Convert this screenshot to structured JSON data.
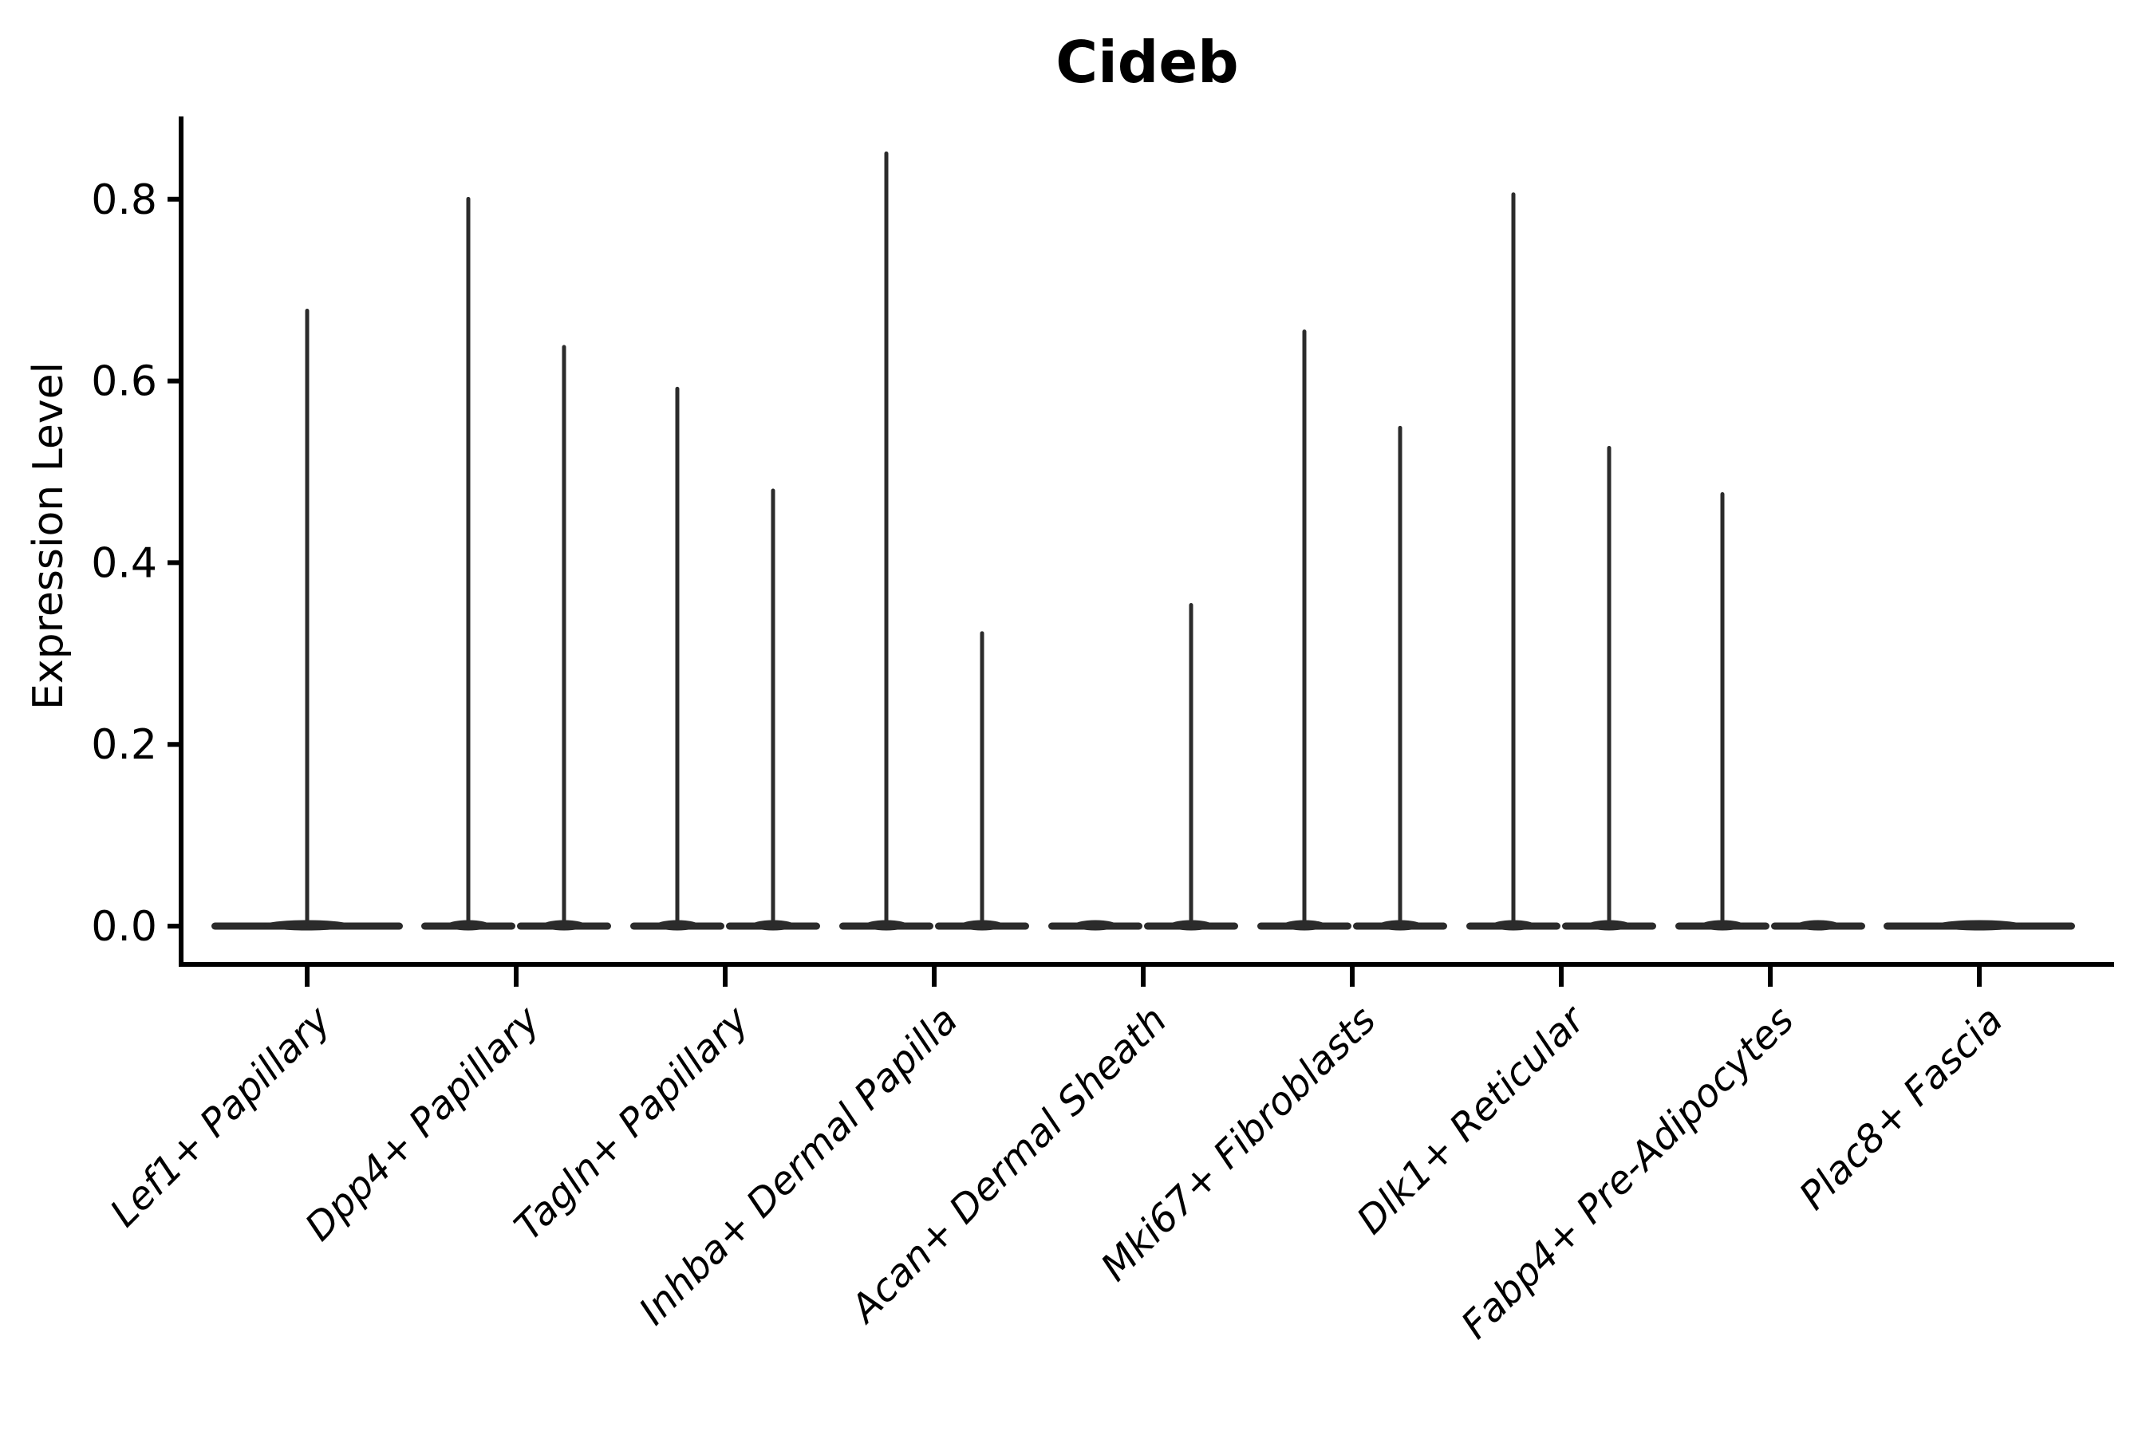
{
  "chart_data": {
    "type": "violin",
    "title": "Cideb",
    "xlabel": "",
    "ylabel": "Expression Level",
    "ylim": [
      -0.04,
      0.89
    ],
    "yticks": [
      0.0,
      0.2,
      0.4,
      0.6,
      0.8
    ],
    "ytick_labels": [
      "0.0",
      "0.2",
      "0.4",
      "0.6",
      "0.8"
    ],
    "grid": false,
    "legend": "none",
    "baseline_value": 0.0,
    "note": "Each category shows flat violin mass at 0 with a thin spike to the max expression; categories with two sub-violins are dodged pairs",
    "categories": [
      "Lef1+ Papillary",
      "Dpp4+ Papillary",
      "Tagln+ Papillary",
      "Inhba+ Dermal Papilla",
      "Acan+ Dermal Sheath",
      "Mki67+ Fibroblasts",
      "Dlk1+ Reticular",
      "Fabp4+ Pre-Adipocytes",
      "Plac8+ Fascia"
    ],
    "groups": [
      {
        "category": "Lef1+ Papillary",
        "violin_max": [
          0.68
        ]
      },
      {
        "category": "Dpp4+ Papillary",
        "violin_max": [
          0.803,
          0.64
        ]
      },
      {
        "category": "Tagln+ Papillary",
        "violin_max": [
          0.594,
          0.482
        ]
      },
      {
        "category": "Inhba+ Dermal Papilla",
        "violin_max": [
          0.853,
          0.325
        ]
      },
      {
        "category": "Acan+ Dermal Sheath",
        "violin_max": [
          0.0,
          0.356
        ]
      },
      {
        "category": "Mki67+ Fibroblasts",
        "violin_max": [
          0.657,
          0.551
        ]
      },
      {
        "category": "Dlk1+ Reticular",
        "violin_max": [
          0.808,
          0.529
        ]
      },
      {
        "category": "Fabp4+ Pre-Adipocytes",
        "violin_max": [
          0.478,
          0.0
        ]
      },
      {
        "category": "Plac8+ Fascia",
        "violin_max": [
          0.0
        ]
      }
    ],
    "violin_color": "#2b2b2b",
    "axis_color": "#000000",
    "text_color": "#000000",
    "background_color": "#ffffff"
  }
}
